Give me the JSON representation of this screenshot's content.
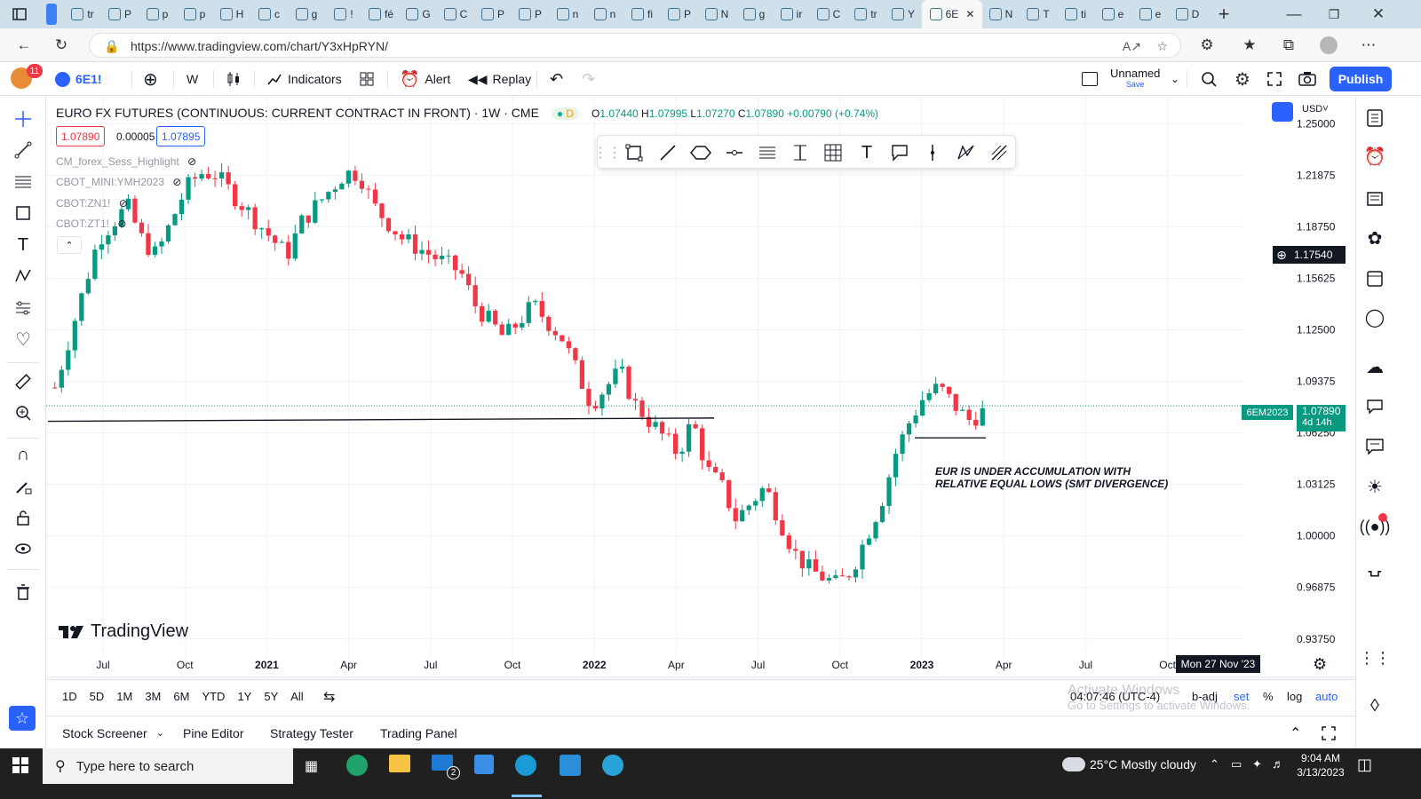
{
  "browser": {
    "tabs": [
      "tr",
      "P",
      "p",
      "p",
      "H",
      "c",
      "g",
      "!",
      "fé",
      "G",
      "C",
      "P",
      "P",
      "n",
      "n",
      "fi",
      "P",
      "N",
      "g",
      "ir",
      "C",
      "tr",
      "Y",
      "6E",
      "N",
      "T",
      "ti",
      "e",
      "e",
      "D"
    ],
    "active_tab_index": 23,
    "url": "https://www.tradingview.com/chart/Y3xHpRYN/"
  },
  "tv": {
    "avatar_badge": "11",
    "symbol": "6E1!",
    "interval": "W",
    "indicators_label": "Indicators",
    "alert_label": "Alert",
    "replay_label": "Replay",
    "layout_name": "Unnamed",
    "layout_save": "Save",
    "publish_label": "Publish"
  },
  "legend": {
    "title": "EURO FX FUTURES (CONTINUOUS: CURRENT CONTRACT IN FRONT) · 1W · CME",
    "badge": "D",
    "open": "1.07440",
    "high": "1.07995",
    "low": "1.07270",
    "close": "1.07890",
    "change": "+0.00790 (+0.74%)",
    "bid": "1.07890",
    "spread": "0.00005",
    "ask": "1.07895",
    "indicators": [
      "CM_forex_Sess_Highlight",
      "CBOT_MINI:YMH2023",
      "CBOT:ZN1!",
      "CBOT:ZT1!"
    ]
  },
  "chart_data": {
    "type": "candlestick",
    "title": "EURO FX FUTURES (CONTINUOUS: CURRENT CONTRACT IN FRONT) · 1W · CME",
    "currency": "USD",
    "ylim": [
      0.925,
      1.255
    ],
    "yticks": [
      "1.25000",
      "1.21875",
      "1.18750",
      "1.15625",
      "1.12500",
      "1.09375",
      "1.06250",
      "1.03125",
      "1.00000",
      "0.96875",
      "0.93750"
    ],
    "xticks": [
      "Jul",
      "Oct",
      "2021",
      "Apr",
      "Jul",
      "Oct",
      "2022",
      "Apr",
      "Jul",
      "Oct",
      "2023",
      "Apr",
      "Jul",
      "Oct"
    ],
    "last_price": "1.07890",
    "last_symbol": "6EM2023",
    "countdown": "4d 14h",
    "crosshair_price": "1.17540",
    "crosshair_date": "Mon 27 Nov '23",
    "annotation": [
      "EUR IS UNDER ACCUMULATION WITH",
      "RELATIVE EQUAL LOWS (SMT DIVERGENCE)"
    ],
    "watermark": "TradingView",
    "trend_path": [
      1.09,
      1.12,
      1.15,
      1.18,
      1.19,
      1.2,
      1.18,
      1.17,
      1.19,
      1.21,
      1.22,
      1.22,
      1.21,
      1.2,
      1.19,
      1.18,
      1.17,
      1.19,
      1.2,
      1.21,
      1.22,
      1.22,
      1.2,
      1.19,
      1.18,
      1.175,
      1.17,
      1.165,
      1.16,
      1.14,
      1.13,
      1.12,
      1.13,
      1.14,
      1.13,
      1.12,
      1.1,
      1.08,
      1.09,
      1.1,
      1.08,
      1.07,
      1.06,
      1.05,
      1.07,
      1.04,
      1.03,
      1.01,
      1.02,
      1.03,
      1.01,
      0.99,
      0.98,
      0.975,
      0.97,
      0.98,
      1.0,
      1.02,
      1.05,
      1.07,
      1.085,
      1.09,
      1.08,
      1.07,
      1.075
    ]
  },
  "bottom": {
    "ranges": [
      "1D",
      "5D",
      "1M",
      "3M",
      "6M",
      "YTD",
      "1Y",
      "5Y",
      "All"
    ],
    "clock": "04:07:46 (UTC-4)",
    "badj": "b-adj",
    "set": "set",
    "pct": "%",
    "log": "log",
    "auto": "auto",
    "activate1": "Activate Windows",
    "activate2": "Go to Settings to activate Windows.",
    "panels": [
      "Stock Screener",
      "Pine Editor",
      "Strategy Tester",
      "Trading Panel"
    ]
  },
  "taskbar": {
    "search_placeholder": "Type here to search",
    "weather": "25°C  Mostly cloudy",
    "time": "9:04 AM",
    "date": "3/13/2023",
    "mail_badge": "2"
  }
}
